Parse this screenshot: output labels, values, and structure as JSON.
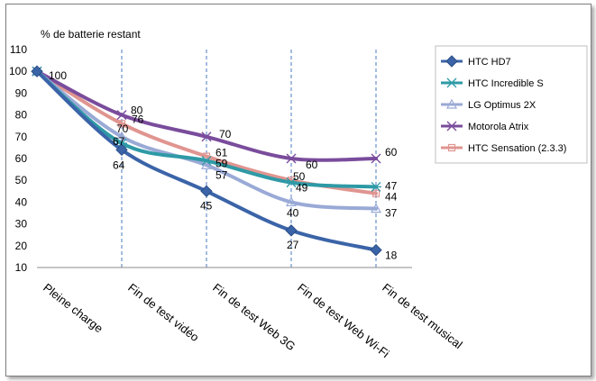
{
  "chart_data": {
    "type": "line",
    "title": "% de batterie restant",
    "categories": [
      "Pleine charge",
      "Fin de test vidéo",
      "Fin de test Web 3G",
      "Fin de test Web Wi-Fi",
      "Fin de test musical"
    ],
    "ylim": [
      10,
      110
    ],
    "yticks": [
      10,
      20,
      30,
      40,
      50,
      60,
      70,
      80,
      90,
      100,
      110
    ],
    "grid": "vertical dashed",
    "legend_position": "right",
    "series": [
      {
        "name": "HTC HD7",
        "values": [
          100,
          64,
          45,
          27,
          18
        ],
        "color": "#3b64a8",
        "marker": "diamond",
        "labels": [
          "100",
          "64",
          "45",
          "27",
          "18"
        ]
      },
      {
        "name": "HTC Incredible S",
        "values": [
          100,
          67,
          59,
          49,
          47
        ],
        "color": "#2e9aa6",
        "marker": "asterisk",
        "labels": [
          "",
          "67",
          "59",
          "49",
          "47"
        ]
      },
      {
        "name": "LG Optimus 2X",
        "values": [
          100,
          70,
          57,
          40,
          37
        ],
        "color": "#9aaad6",
        "marker": "triangle",
        "labels": [
          "",
          "70",
          "57",
          "40",
          "37"
        ]
      },
      {
        "name": "Motorola Atrix",
        "values": [
          100,
          80,
          70,
          60,
          60
        ],
        "color": "#7a4c9c",
        "marker": "x",
        "labels": [
          "",
          "80",
          "70",
          "60",
          "60"
        ]
      },
      {
        "name": "HTC Sensation (2.3.3)",
        "values": [
          100,
          76,
          61,
          50,
          44
        ],
        "color": "#e09590",
        "marker": "square",
        "labels": [
          "",
          "76",
          "61",
          "50",
          "44"
        ]
      }
    ]
  }
}
